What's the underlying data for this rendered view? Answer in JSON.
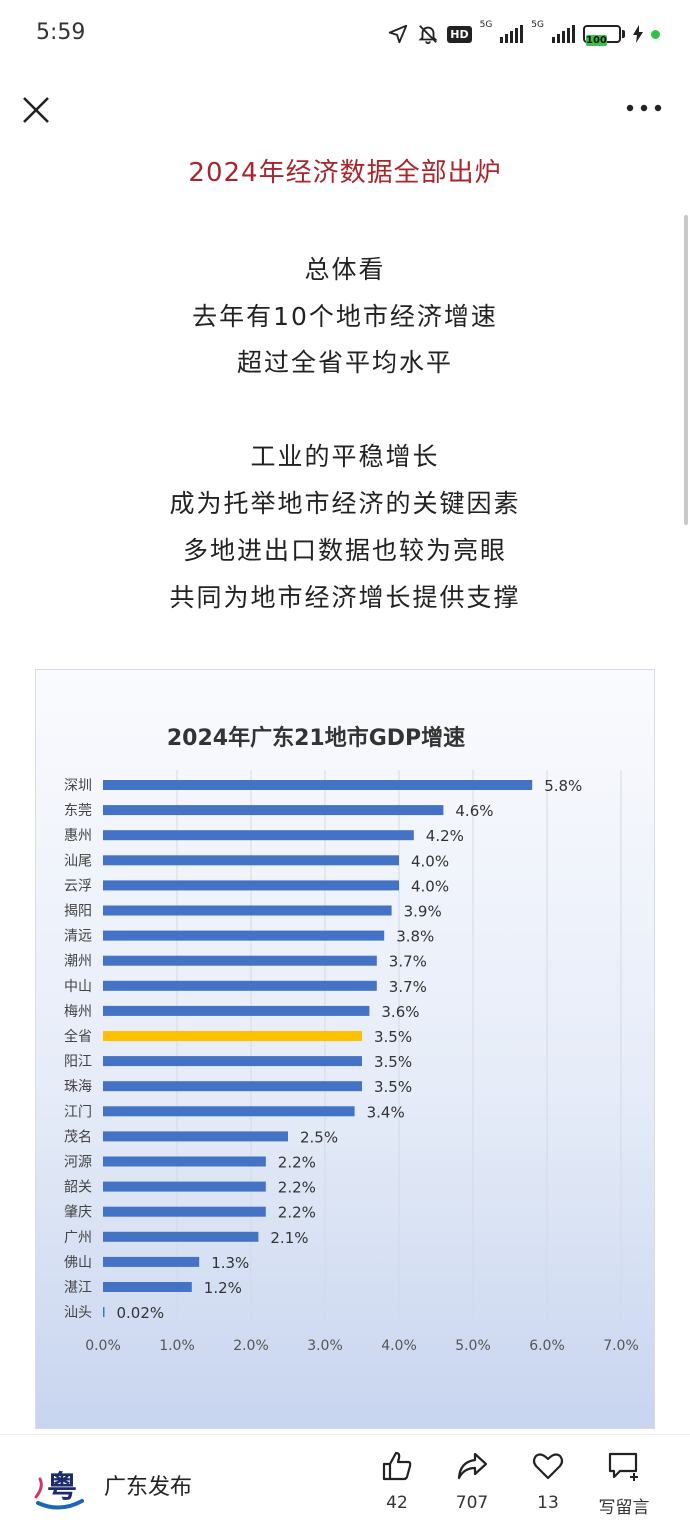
{
  "status_bar": {
    "time": "5:59",
    "hd_label": "HD",
    "network_1": "5G",
    "network_2": "5G",
    "battery": "100"
  },
  "article": {
    "title": "2024年经济数据全部出炉",
    "paragraph1": [
      "总体看",
      "去年有10个地市经济增速",
      "超过全省平均水平"
    ],
    "paragraph2": [
      "工业的平稳增长",
      "成为托举地市经济的关键因素",
      "多地进出口数据也较为亮眼",
      "共同为地市经济增长提供支撑"
    ]
  },
  "chart_data": {
    "type": "bar",
    "orientation": "horizontal",
    "title": "2024年广东21地市GDP增速",
    "categories": [
      "深圳",
      "东莞",
      "惠州",
      "汕尾",
      "云浮",
      "揭阳",
      "清远",
      "潮州",
      "中山",
      "梅州",
      "全省",
      "阳江",
      "珠海",
      "江门",
      "茂名",
      "河源",
      "韶关",
      "肇庆",
      "广州",
      "佛山",
      "湛江",
      "汕头"
    ],
    "values": [
      5.8,
      4.6,
      4.2,
      4.0,
      4.0,
      3.9,
      3.8,
      3.7,
      3.7,
      3.6,
      3.5,
      3.5,
      3.5,
      3.4,
      2.5,
      2.2,
      2.2,
      2.2,
      2.1,
      1.3,
      1.2,
      0.02
    ],
    "value_labels": [
      "5.8%",
      "4.6%",
      "4.2%",
      "4.0%",
      "4.0%",
      "3.9%",
      "3.8%",
      "3.7%",
      "3.7%",
      "3.6%",
      "3.5%",
      "3.5%",
      "3.5%",
      "3.4%",
      "2.5%",
      "2.2%",
      "2.2%",
      "2.2%",
      "2.1%",
      "1.3%",
      "1.2%",
      "0.02%"
    ],
    "highlight_category": "全省",
    "x_ticks": [
      "0.0%",
      "1.0%",
      "2.0%",
      "3.0%",
      "4.0%",
      "5.0%",
      "6.0%",
      "7.0%"
    ],
    "xlim": [
      0,
      7
    ],
    "grid": true,
    "colors": {
      "bar": "#4472c4",
      "highlight": "#ffc000",
      "grid": "#d3d9e6"
    }
  },
  "bottom_bar": {
    "account_name": "广东发布",
    "logo_char": "粤",
    "likes": "42",
    "shares": "707",
    "favorites": "13",
    "comment_label": "写留言"
  },
  "icons": [
    "location-arrow-icon",
    "mute-bell-icon",
    "close-icon",
    "more-icon",
    "thumbs-up-icon",
    "share-icon",
    "heart-icon",
    "comment-icon"
  ]
}
